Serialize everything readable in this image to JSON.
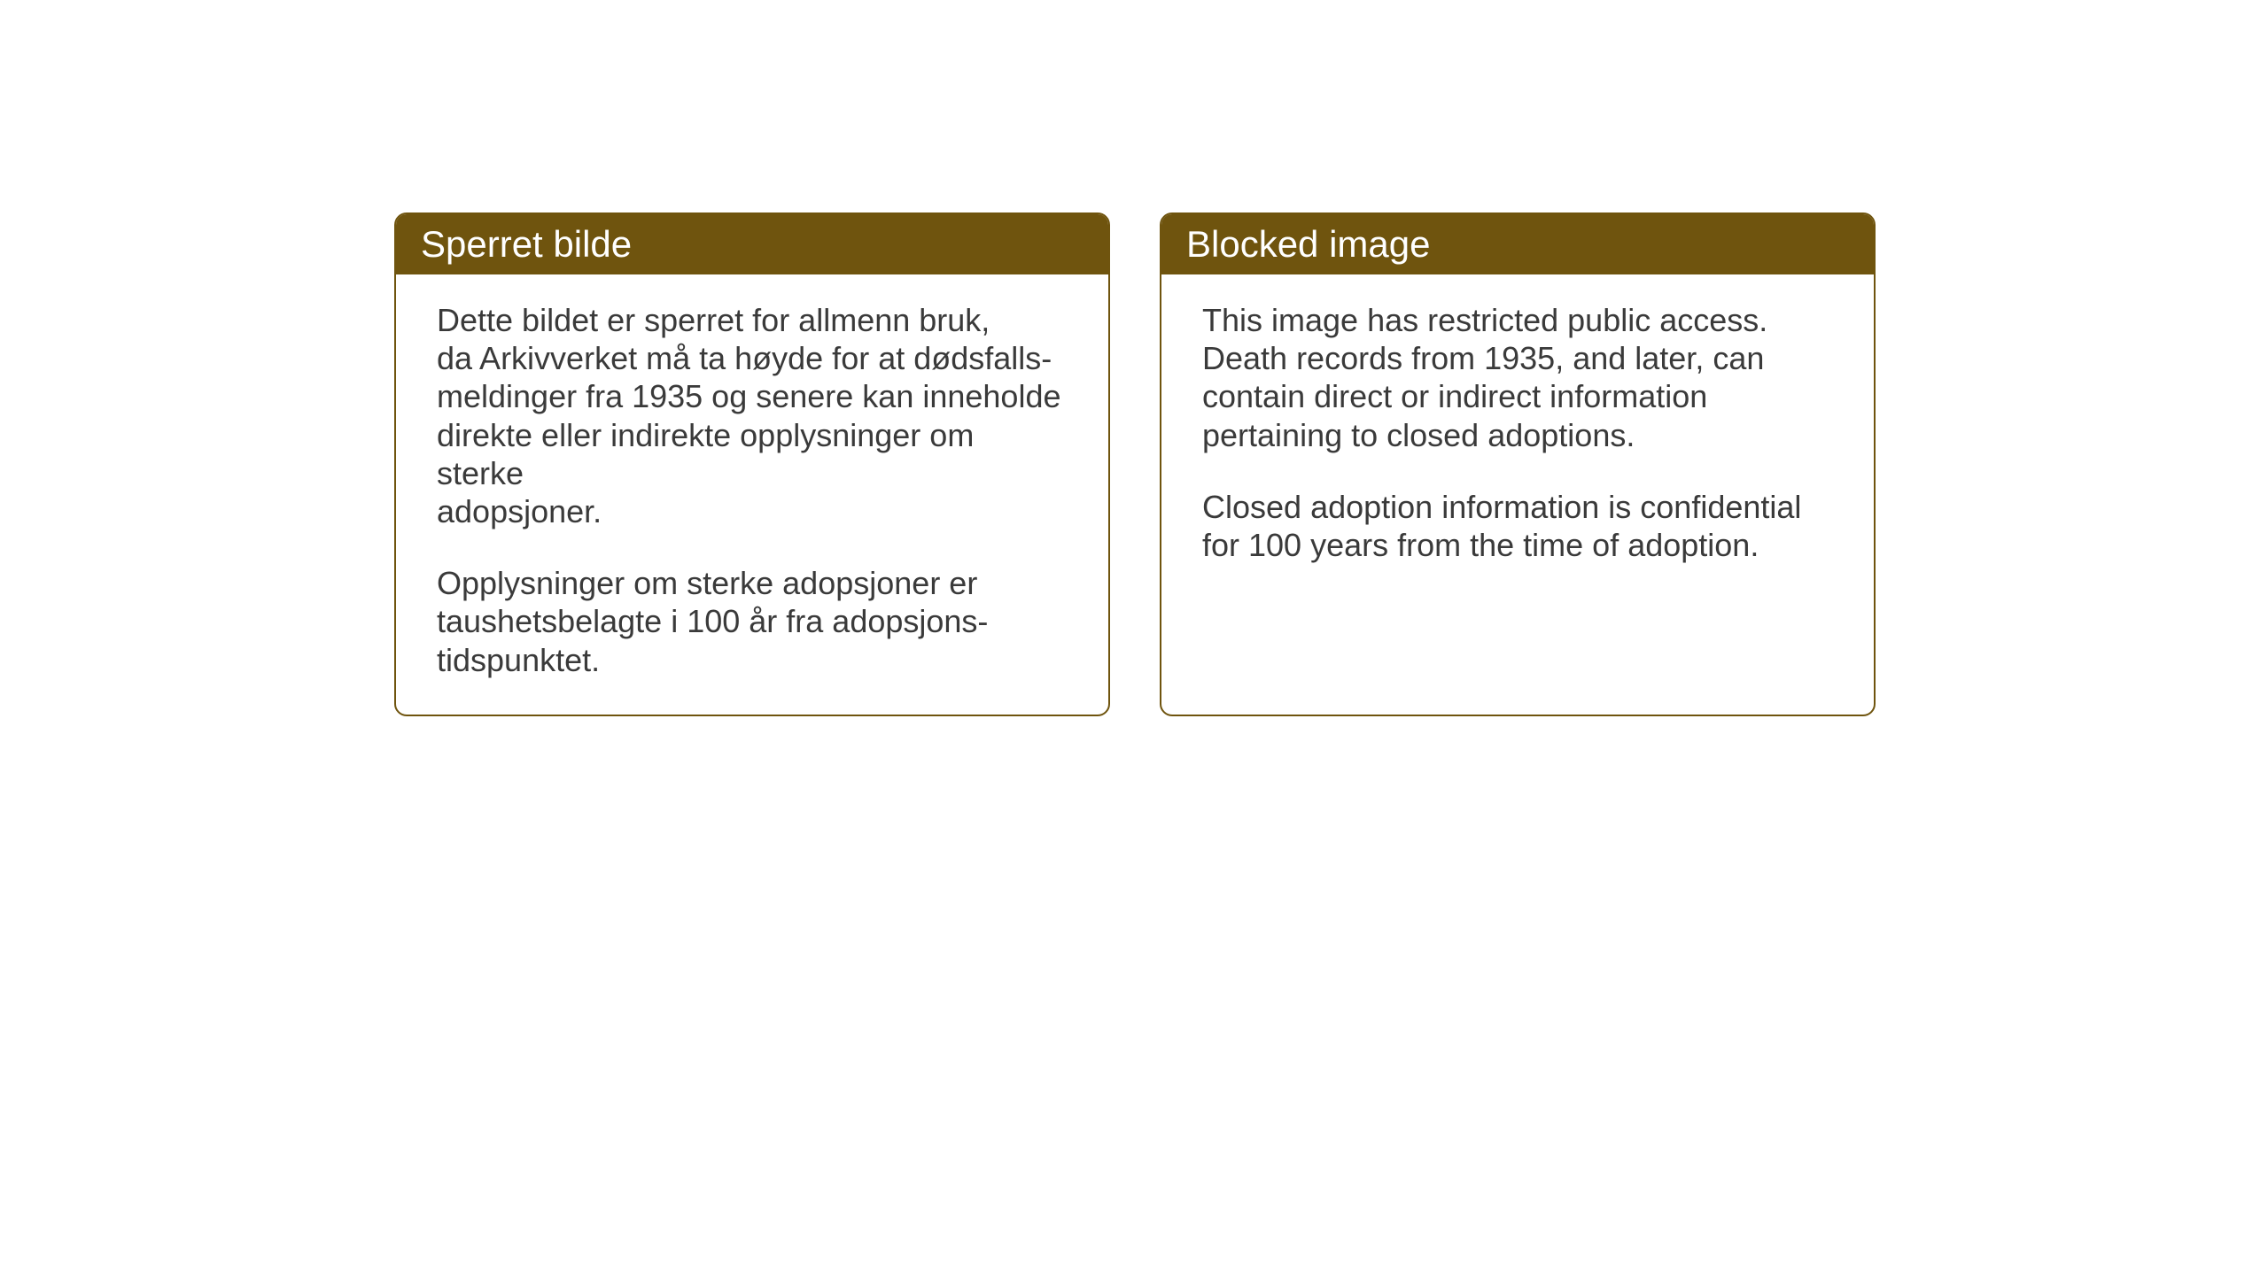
{
  "layout": {
    "background_color": "#ffffff",
    "box_border_color": "#6f540e",
    "box_header_bg": "#6f540e",
    "box_header_text_color": "#ffffff",
    "body_text_color": "#3a3a3a",
    "border_radius": 14,
    "header_fontsize": 42,
    "body_fontsize": 36
  },
  "boxes": {
    "left": {
      "title": "Sperret bilde",
      "p1_line1": "Dette bildet er sperret for allmenn bruk,",
      "p1_line2": "da Arkivverket må ta høyde for at dødsfalls-",
      "p1_line3": "meldinger fra 1935 og senere kan inneholde",
      "p1_line4": "direkte eller indirekte opplysninger om sterke",
      "p1_line5": "adopsjoner.",
      "p2_line1": "Opplysninger om sterke adopsjoner er",
      "p2_line2": "taushetsbelagte i 100 år fra adopsjons-",
      "p2_line3": "tidspunktet."
    },
    "right": {
      "title": "Blocked image",
      "p1_line1": "This image has restricted public access.",
      "p1_line2": "Death records from 1935, and later, can",
      "p1_line3": "contain direct or indirect information",
      "p1_line4": "pertaining to closed adoptions.",
      "p2_line1": "Closed adoption information is confidential",
      "p2_line2": "for 100 years from the time of adoption."
    }
  }
}
